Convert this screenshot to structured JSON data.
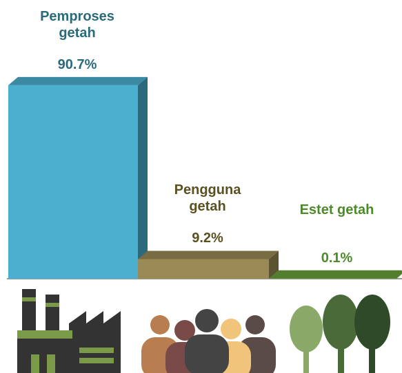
{
  "chart_data": {
    "type": "bar3d",
    "categories": [
      "Pemproses getah",
      "Pengguna getah",
      "Estet getah"
    ],
    "values": [
      90.7,
      9.2,
      0.1
    ],
    "value_labels": [
      "90.7%",
      "9.2%",
      "0.1%"
    ],
    "colors": [
      "#4bafd0",
      "#9a8a55",
      "#6aa23a"
    ]
  }
}
